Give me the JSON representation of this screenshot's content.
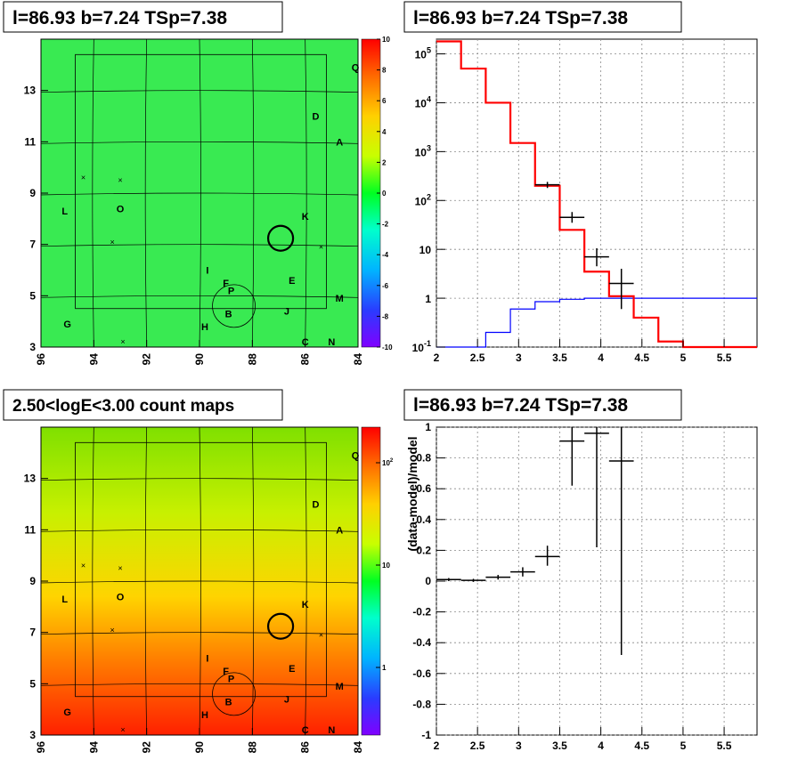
{
  "panels": {
    "top_left_title": "l=86.93 b=7.24 TSp=7.38",
    "top_right_title": "l=86.93 b=7.24 TSp=7.38",
    "bottom_left_title": "2.50<logE<3.00 count maps",
    "bottom_right_title": "l=86.93 b=7.24 TSp=7.38"
  },
  "colors": {
    "model_line": "#ff0000",
    "background_line": "#0000ff",
    "data_marker": "#000000"
  },
  "chart_data": [
    {
      "type": "heatmap",
      "title": "l=86.93 b=7.24 TSp=7.38",
      "x_ticks": [
        "96",
        "94",
        "92",
        "90",
        "88",
        "86",
        "84"
      ],
      "y_ticks": [
        "3",
        "5",
        "7",
        "9",
        "11",
        "13"
      ],
      "xlim": [
        96,
        84
      ],
      "ylim": [
        3,
        15
      ],
      "colorbar": {
        "min": -10,
        "max": 10,
        "ticks": [
          "10",
          "8",
          "6",
          "4",
          "2",
          "0",
          "-2",
          "-4",
          "-6",
          "-8",
          "-10"
        ]
      },
      "dominant_value": 0,
      "sources": [
        {
          "label": "Q",
          "l": 84.1,
          "b": 13.9
        },
        {
          "label": "D",
          "l": 85.6,
          "b": 12.0
        },
        {
          "label": "A",
          "l": 84.7,
          "b": 11.0
        },
        {
          "label": "K",
          "l": 86.0,
          "b": 8.1
        },
        {
          "label": "L",
          "l": 95.1,
          "b": 8.3
        },
        {
          "label": "O",
          "l": 93.0,
          "b": 8.4
        },
        {
          "label": "I",
          "l": 89.7,
          "b": 6.0
        },
        {
          "label": "F",
          "l": 89.0,
          "b": 5.5
        },
        {
          "label": "P",
          "l": 88.8,
          "b": 5.2
        },
        {
          "label": "E",
          "l": 86.5,
          "b": 5.6
        },
        {
          "label": "M",
          "l": 84.7,
          "b": 4.9
        },
        {
          "label": "J",
          "l": 86.7,
          "b": 4.4
        },
        {
          "label": "B",
          "l": 88.9,
          "b": 4.3
        },
        {
          "label": "H",
          "l": 89.8,
          "b": 3.8
        },
        {
          "label": "G",
          "l": 95.0,
          "b": 3.9
        },
        {
          "label": "C",
          "l": 86.0,
          "b": 3.2
        },
        {
          "label": "N",
          "l": 85.0,
          "b": 3.2
        }
      ],
      "target": {
        "l": 86.93,
        "b": 7.24
      }
    },
    {
      "type": "line",
      "title": "l=86.93 b=7.24 TSp=7.38",
      "xlim": [
        2,
        5.9
      ],
      "ylim": [
        0.1,
        200000
      ],
      "y_scale": "log",
      "x_ticks": [
        "2",
        "2.5",
        "3",
        "3.5",
        "4",
        "4.5",
        "5",
        "5.5"
      ],
      "y_ticks": [
        "10^-1",
        "1",
        "10",
        "10^2",
        "10^3",
        "10^4",
        "10^5"
      ],
      "grid": true,
      "bin_edges": [
        2.0,
        2.3,
        2.6,
        2.9,
        3.2,
        3.5,
        3.8,
        4.1,
        4.4,
        4.7,
        5.0,
        5.9
      ],
      "series": [
        {
          "values": [
            180000,
            50000,
            10000,
            1500,
            200,
            25,
            3.5,
            1.1,
            0.4,
            0.13,
            0.1
          ]
        },
        {
          "values": [
            0.1,
            0.1,
            0.2,
            0.6,
            0.85,
            0.95,
            1.0,
            1.0,
            1.0,
            1.0,
            1.0
          ]
        },
        {
          "points": [
            {
              "x": 3.35,
              "y": 210,
              "xerr": 0.15,
              "ylo": 180,
              "yhi": 240
            },
            {
              "x": 3.65,
              "y": 45,
              "xerr": 0.15,
              "ylo": 35,
              "yhi": 58
            },
            {
              "x": 3.95,
              "y": 7.0,
              "xerr": 0.15,
              "ylo": 4.5,
              "yhi": 10.5
            },
            {
              "x": 4.25,
              "y": 2.0,
              "xerr": 0.15,
              "ylo": 0.6,
              "yhi": 4.0
            }
          ]
        }
      ]
    },
    {
      "type": "heatmap",
      "title": "2.50<logE<3.00 count maps",
      "x_ticks": [
        "96",
        "94",
        "92",
        "90",
        "88",
        "86",
        "84"
      ],
      "y_ticks": [
        "3",
        "5",
        "7",
        "9",
        "11",
        "13"
      ],
      "xlim": [
        96,
        84
      ],
      "ylim": [
        3,
        15
      ],
      "colorbar": {
        "scale": "log",
        "ticks": [
          "10^2",
          "10",
          "1"
        ]
      },
      "sources": [
        {
          "label": "Q",
          "l": 84.1,
          "b": 13.9
        },
        {
          "label": "D",
          "l": 85.6,
          "b": 12.0
        },
        {
          "label": "A",
          "l": 84.7,
          "b": 11.0
        },
        {
          "label": "K",
          "l": 86.0,
          "b": 8.1
        },
        {
          "label": "L",
          "l": 95.1,
          "b": 8.3
        },
        {
          "label": "O",
          "l": 93.0,
          "b": 8.4
        },
        {
          "label": "I",
          "l": 89.7,
          "b": 6.0
        },
        {
          "label": "F",
          "l": 89.0,
          "b": 5.5
        },
        {
          "label": "P",
          "l": 88.8,
          "b": 5.2
        },
        {
          "label": "E",
          "l": 86.5,
          "b": 5.6
        },
        {
          "label": "M",
          "l": 84.7,
          "b": 4.9
        },
        {
          "label": "J",
          "l": 86.7,
          "b": 4.4
        },
        {
          "label": "B",
          "l": 88.9,
          "b": 4.3
        },
        {
          "label": "H",
          "l": 89.8,
          "b": 3.8
        },
        {
          "label": "G",
          "l": 95.0,
          "b": 3.9
        },
        {
          "label": "C",
          "l": 86.0,
          "b": 3.2
        },
        {
          "label": "N",
          "l": 85.0,
          "b": 3.2
        }
      ],
      "target": {
        "l": 86.93,
        "b": 7.24
      }
    },
    {
      "type": "scatter",
      "title": "l=86.93 b=7.24 TSp=7.38",
      "ylabel": "(data-model)/model",
      "xlim": [
        2,
        5.9
      ],
      "ylim": [
        -1,
        1
      ],
      "x_ticks": [
        "2",
        "2.5",
        "3",
        "3.5",
        "4",
        "4.5",
        "5",
        "5.5"
      ],
      "y_ticks": [
        "-1",
        "-0.8",
        "-0.6",
        "-0.4",
        "-0.2",
        "0",
        "0.2",
        "0.4",
        "0.6",
        "0.8",
        "1"
      ],
      "grid": true,
      "points": [
        {
          "x": 2.15,
          "y": 0.01,
          "xerr": 0.15,
          "ylo": 0.0,
          "yhi": 0.02
        },
        {
          "x": 2.45,
          "y": 0.005,
          "xerr": 0.15,
          "ylo": -0.005,
          "yhi": 0.015
        },
        {
          "x": 2.75,
          "y": 0.025,
          "xerr": 0.15,
          "ylo": 0.01,
          "yhi": 0.04
        },
        {
          "x": 3.05,
          "y": 0.06,
          "xerr": 0.15,
          "ylo": 0.03,
          "yhi": 0.09
        },
        {
          "x": 3.35,
          "y": 0.16,
          "xerr": 0.15,
          "ylo": 0.1,
          "yhi": 0.23
        },
        {
          "x": 3.65,
          "y": 0.91,
          "xerr": 0.15,
          "ylo": 0.62,
          "yhi": 1.0
        },
        {
          "x": 3.95,
          "y": 0.96,
          "xerr": 0.15,
          "ylo": 0.22,
          "yhi": 1.0
        },
        {
          "x": 4.25,
          "y": 0.78,
          "xerr": 0.15,
          "ylo": -0.48,
          "yhi": 1.0
        }
      ]
    }
  ]
}
